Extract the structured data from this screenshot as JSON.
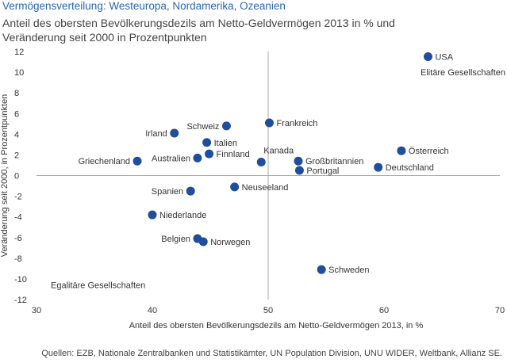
{
  "title": "Vermögensverteilung: Westeuropa, Nordamerika, Ozeanien",
  "subtitle_line1": "Anteil des obersten Bevölkerungsdezils am Netto-Geldvermögen 2013 in % und",
  "subtitle_line2": "Veränderung seit 2000 in Prozentpunkten",
  "source": "Quellen: EZB, Nationale Zentralbanken und Statistikämter, UN Population Division, UNU WIDER, Weltbank, Allianz SE.",
  "chart_data": {
    "type": "scatter",
    "xlabel": "Anteil des obersten Bevölkerungsdezils am Netto-Geldvermögen 2013, in %",
    "ylabel": "Veränderung seit 2000, in Prozentpunkten",
    "xlim": [
      30,
      70
    ],
    "ylim": [
      -12,
      12
    ],
    "xticks": [
      30,
      40,
      50,
      60,
      70
    ],
    "yticks": [
      12,
      10,
      8,
      6,
      4,
      2,
      0,
      -2,
      -4,
      -6,
      -8,
      -10,
      -12
    ],
    "grid": false,
    "point_color": "#1f4e9c",
    "annotations": [
      {
        "text": "Elitäre Gesellschaften",
        "position": "top-right"
      },
      {
        "text": "Egalitäre Gesellschaften",
        "position": "bottom-left"
      }
    ],
    "points": [
      {
        "label": "USA",
        "x": 63.8,
        "y": 11.5,
        "side": "right"
      },
      {
        "label": "Frankreich",
        "x": 50.1,
        "y": 5.1,
        "side": "right"
      },
      {
        "label": "Schweiz",
        "x": 46.4,
        "y": 4.8,
        "side": "left"
      },
      {
        "label": "Irland",
        "x": 41.9,
        "y": 4.1,
        "side": "left"
      },
      {
        "label": "Italien",
        "x": 44.7,
        "y": 3.2,
        "side": "right"
      },
      {
        "label": "Finnland",
        "x": 44.9,
        "y": 2.1,
        "side": "right"
      },
      {
        "label": "Australien",
        "x": 43.9,
        "y": 1.7,
        "side": "left"
      },
      {
        "label": "Griechenland",
        "x": 38.7,
        "y": 1.4,
        "side": "left"
      },
      {
        "label": "Kanada",
        "x": 49.4,
        "y": 1.3,
        "side": "above"
      },
      {
        "label": "Großbritannien",
        "x": 52.6,
        "y": 1.4,
        "side": "right"
      },
      {
        "label": "Portugal",
        "x": 52.7,
        "y": 0.5,
        "side": "right"
      },
      {
        "label": "Österreich",
        "x": 61.5,
        "y": 2.4,
        "side": "right"
      },
      {
        "label": "Deutschland",
        "x": 59.5,
        "y": 0.8,
        "side": "right"
      },
      {
        "label": "Neuseeland",
        "x": 47.1,
        "y": -1.1,
        "side": "right"
      },
      {
        "label": "Spanien",
        "x": 43.3,
        "y": -1.5,
        "side": "left"
      },
      {
        "label": "Niederlande",
        "x": 40.0,
        "y": -3.8,
        "side": "right"
      },
      {
        "label": "Belgien",
        "x": 43.9,
        "y": -6.1,
        "side": "left"
      },
      {
        "label": "Norwegen",
        "x": 44.4,
        "y": -6.4,
        "side": "right"
      },
      {
        "label": "Schweden",
        "x": 54.6,
        "y": -9.1,
        "side": "right"
      }
    ]
  }
}
